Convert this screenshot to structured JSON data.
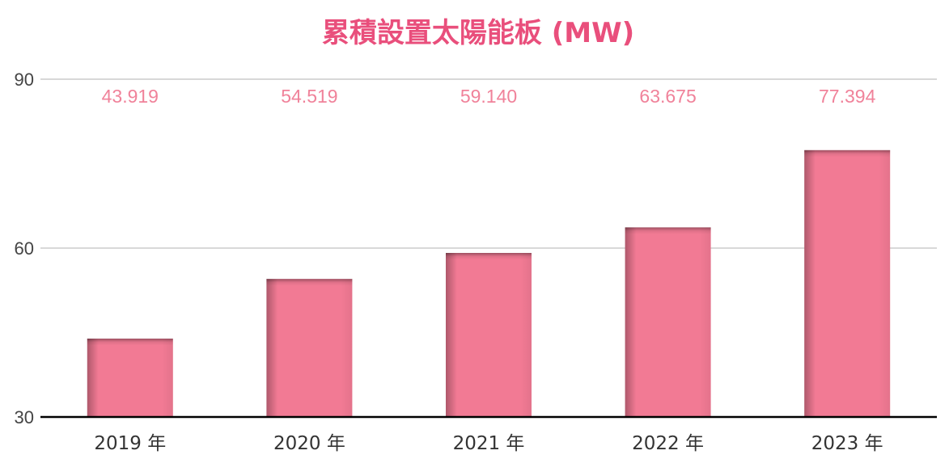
{
  "colors": {
    "title": "#e94f7c",
    "bar": "#f27a94",
    "bar_shade": "#b85a6e",
    "data_label": "#f0829a",
    "grid": "#cccccc",
    "axis": "#000000",
    "tick_text": "#444444",
    "category_text": "#333333"
  },
  "chart_data": {
    "type": "bar",
    "title": "累積設置太陽能板 (MW)",
    "xlabel": "",
    "ylabel": "",
    "categories": [
      "2019 年",
      "2020 年",
      "2021 年",
      "2022 年",
      "2023 年"
    ],
    "values": [
      43.919,
      54.519,
      59.14,
      63.675,
      77.394
    ],
    "value_labels": [
      "43.919",
      "54.519",
      "59.140",
      "63.675",
      "77.394"
    ],
    "ylim": [
      30,
      90
    ],
    "yticks": [
      30,
      60,
      90
    ],
    "grid": true,
    "legend": "none"
  }
}
